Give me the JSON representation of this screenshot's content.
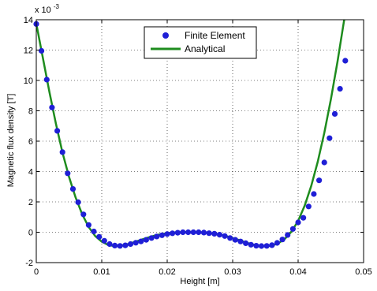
{
  "chart_data": {
    "type": "line",
    "xlabel": "Height [m]",
    "ylabel": "Magnetic flux density [T]",
    "y_exponent": "x 10^-3",
    "y_exponent_base": "x 10",
    "y_exponent_power": "-3",
    "xlim": [
      0,
      0.05
    ],
    "ylim": [
      -2,
      14
    ],
    "xticks": [
      0,
      0.01,
      0.02,
      0.03,
      0.04,
      0.05
    ],
    "xtick_labels": [
      "0",
      "0.01",
      "0.02",
      "0.03",
      "0.04",
      "0.05"
    ],
    "yticks": [
      -2,
      0,
      2,
      4,
      6,
      8,
      10,
      12,
      14
    ],
    "ytick_labels": [
      "-2",
      "0",
      "2",
      "4",
      "6",
      "8",
      "10",
      "12",
      "14"
    ],
    "grid": true,
    "legend_position": "top-center",
    "series": [
      {
        "name": "Finite Element",
        "style": "markers",
        "color": "#1f1fd6",
        "x": [
          0.0,
          0.0008,
          0.0016,
          0.0024,
          0.0032,
          0.004,
          0.0048,
          0.0056,
          0.0064,
          0.0072,
          0.008,
          0.0088,
          0.0096,
          0.0104,
          0.0112,
          0.012,
          0.0128,
          0.0136,
          0.0144,
          0.0152,
          0.016,
          0.0168,
          0.0176,
          0.0184,
          0.0192,
          0.02,
          0.0208,
          0.0216,
          0.0224,
          0.0232,
          0.024,
          0.0248,
          0.0256,
          0.0264,
          0.0272,
          0.028,
          0.0288,
          0.0296,
          0.0304,
          0.0312,
          0.032,
          0.0328,
          0.0336,
          0.0344,
          0.0352,
          0.036,
          0.0368,
          0.0376,
          0.0384,
          0.0392,
          0.04,
          0.0408,
          0.0416,
          0.0424,
          0.0432,
          0.044,
          0.0448,
          0.0456,
          0.0464,
          0.0472
        ],
        "y": [
          13.72,
          11.95,
          10.05,
          8.22,
          6.68,
          5.28,
          3.88,
          2.85,
          1.98,
          1.18,
          0.48,
          0.05,
          -0.3,
          -0.56,
          -0.78,
          -0.88,
          -0.9,
          -0.86,
          -0.78,
          -0.69,
          -0.6,
          -0.5,
          -0.38,
          -0.28,
          -0.2,
          -0.12,
          -0.07,
          -0.03,
          0.0,
          0.0,
          0.0,
          0.0,
          -0.02,
          -0.06,
          -0.1,
          -0.16,
          -0.25,
          -0.38,
          -0.5,
          -0.61,
          -0.72,
          -0.82,
          -0.89,
          -0.91,
          -0.9,
          -0.85,
          -0.7,
          -0.48,
          -0.18,
          0.22,
          0.65,
          0.95,
          1.7,
          2.52,
          3.42,
          4.6,
          6.2,
          7.8,
          9.45,
          11.3
        ]
      },
      {
        "name": "Analytical",
        "style": "line",
        "color": "#1e8c1e",
        "x": [
          0.0,
          0.001,
          0.002,
          0.003,
          0.004,
          0.005,
          0.006,
          0.007,
          0.008,
          0.009,
          0.01,
          0.011,
          0.012,
          0.013,
          0.014,
          0.015,
          0.016,
          0.017,
          0.018,
          0.019,
          0.02,
          0.021,
          0.022,
          0.023,
          0.024,
          0.025,
          0.026,
          0.027,
          0.028,
          0.029,
          0.03,
          0.031,
          0.032,
          0.033,
          0.034,
          0.035,
          0.036,
          0.037,
          0.038,
          0.039,
          0.04,
          0.041,
          0.042,
          0.043,
          0.044,
          0.045,
          0.046,
          0.047,
          0.0475
        ],
        "y": [
          13.75,
          11.5,
          9.25,
          7.15,
          5.25,
          3.65,
          2.3,
          1.2,
          0.35,
          -0.25,
          -0.62,
          -0.84,
          -0.92,
          -0.88,
          -0.78,
          -0.65,
          -0.5,
          -0.36,
          -0.23,
          -0.13,
          -0.06,
          -0.02,
          0.0,
          0.01,
          0.01,
          0.0,
          -0.03,
          -0.08,
          -0.15,
          -0.25,
          -0.38,
          -0.52,
          -0.67,
          -0.8,
          -0.89,
          -0.93,
          -0.88,
          -0.72,
          -0.42,
          0.05,
          0.75,
          1.75,
          3.05,
          4.65,
          6.55,
          8.75,
          11.2,
          13.9,
          15.2
        ]
      }
    ]
  }
}
